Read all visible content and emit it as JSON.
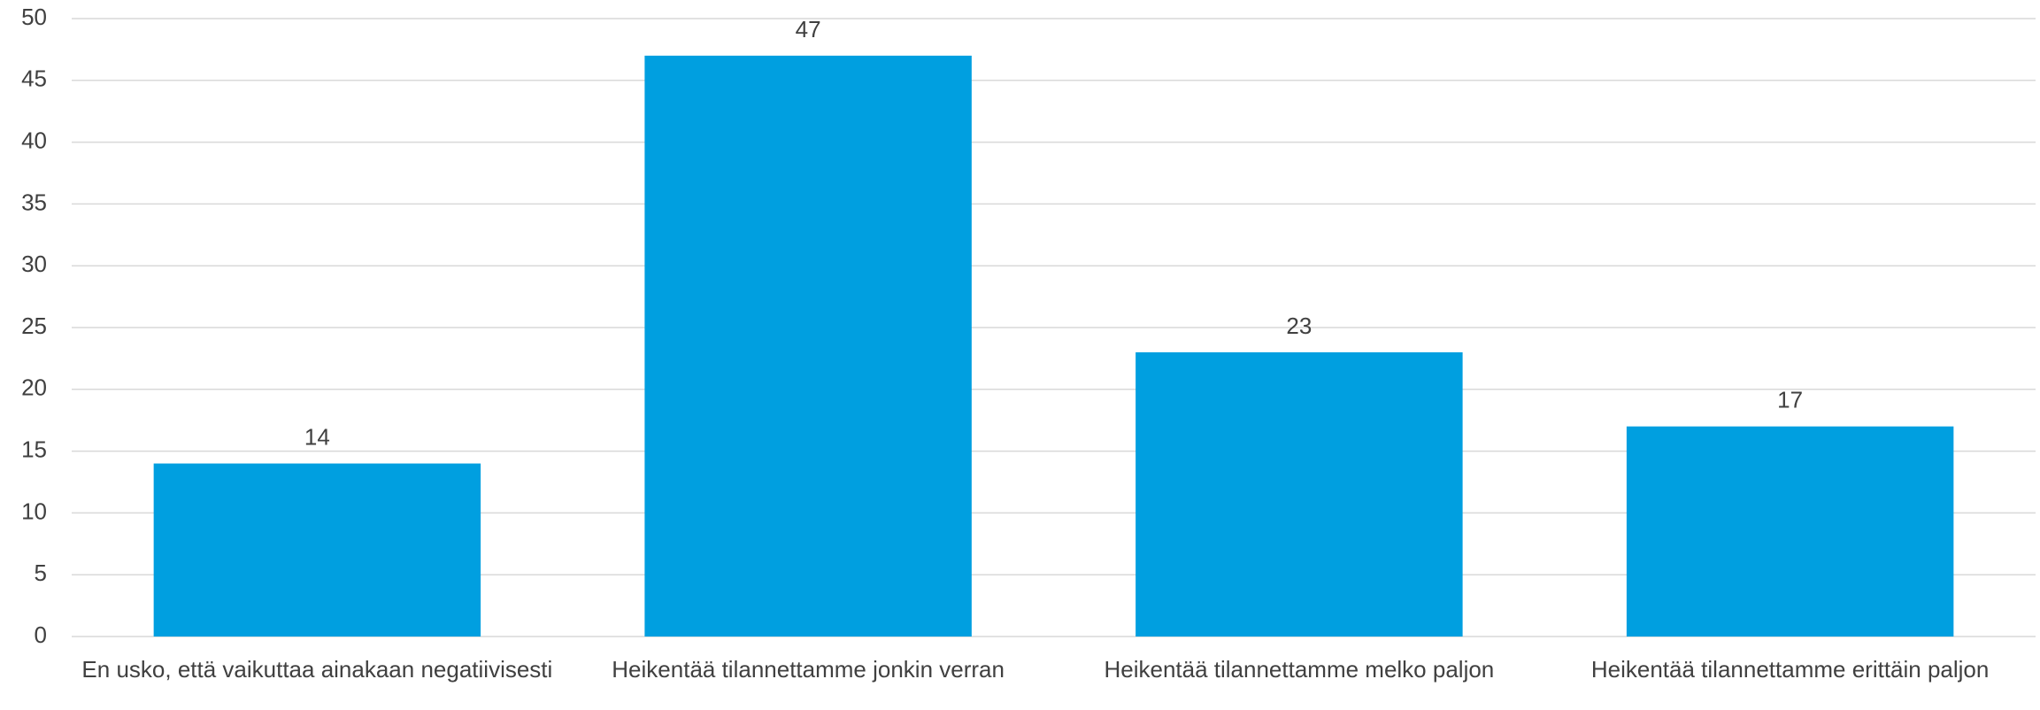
{
  "chart_data": {
    "type": "bar",
    "categories": [
      "En usko, että vaikuttaa ainakaan negatiivisesti",
      "Heikentää tilannettamme jonkin verran",
      "Heikentää tilannettamme melko paljon",
      "Heikentää tilannettamme erittäin paljon"
    ],
    "values": [
      14,
      47,
      23,
      17
    ],
    "color": "#009fe0",
    "ylim": [
      0,
      50
    ],
    "yticks": [
      0,
      5,
      10,
      15,
      20,
      25,
      30,
      35,
      40,
      45,
      50
    ],
    "grid": true,
    "data_labels": true
  }
}
